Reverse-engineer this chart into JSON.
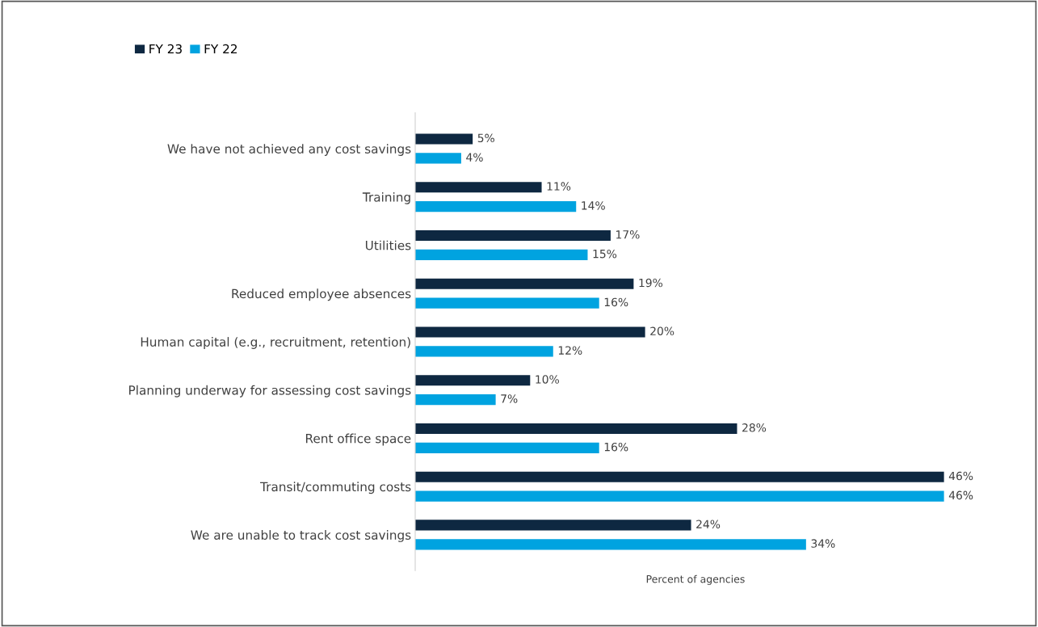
{
  "chart_data": {
    "type": "bar",
    "orientation": "horizontal",
    "xlabel": "Percent of agencies",
    "categories": [
      "We have not achieved any cost savings",
      "Training",
      "Utilities",
      "Reduced employee absences",
      "Human capital (e.g., recruitment, retention)",
      "Planning underway for assessing cost savings",
      "Rent office space",
      "Transit/commuting costs",
      "We are unable to track cost savings"
    ],
    "series": [
      {
        "name": "FY 23",
        "color": "#0e2841",
        "values": [
          5,
          11,
          17,
          19,
          20,
          10,
          28,
          46,
          24
        ],
        "value_labels": [
          "5%",
          "11%",
          "17%",
          "19%",
          "20%",
          "10%",
          "28%",
          "46%",
          "24%"
        ]
      },
      {
        "name": "FY 22",
        "color": "#00a3e0",
        "values": [
          4,
          14,
          15,
          16,
          12,
          7,
          16,
          46,
          34
        ],
        "value_labels": [
          "4%",
          "14%",
          "15%",
          "16%",
          "12%",
          "7%",
          "16%",
          "46%",
          "34%"
        ]
      }
    ],
    "legend": "top left",
    "grid": false,
    "tick_labels": "y"
  }
}
